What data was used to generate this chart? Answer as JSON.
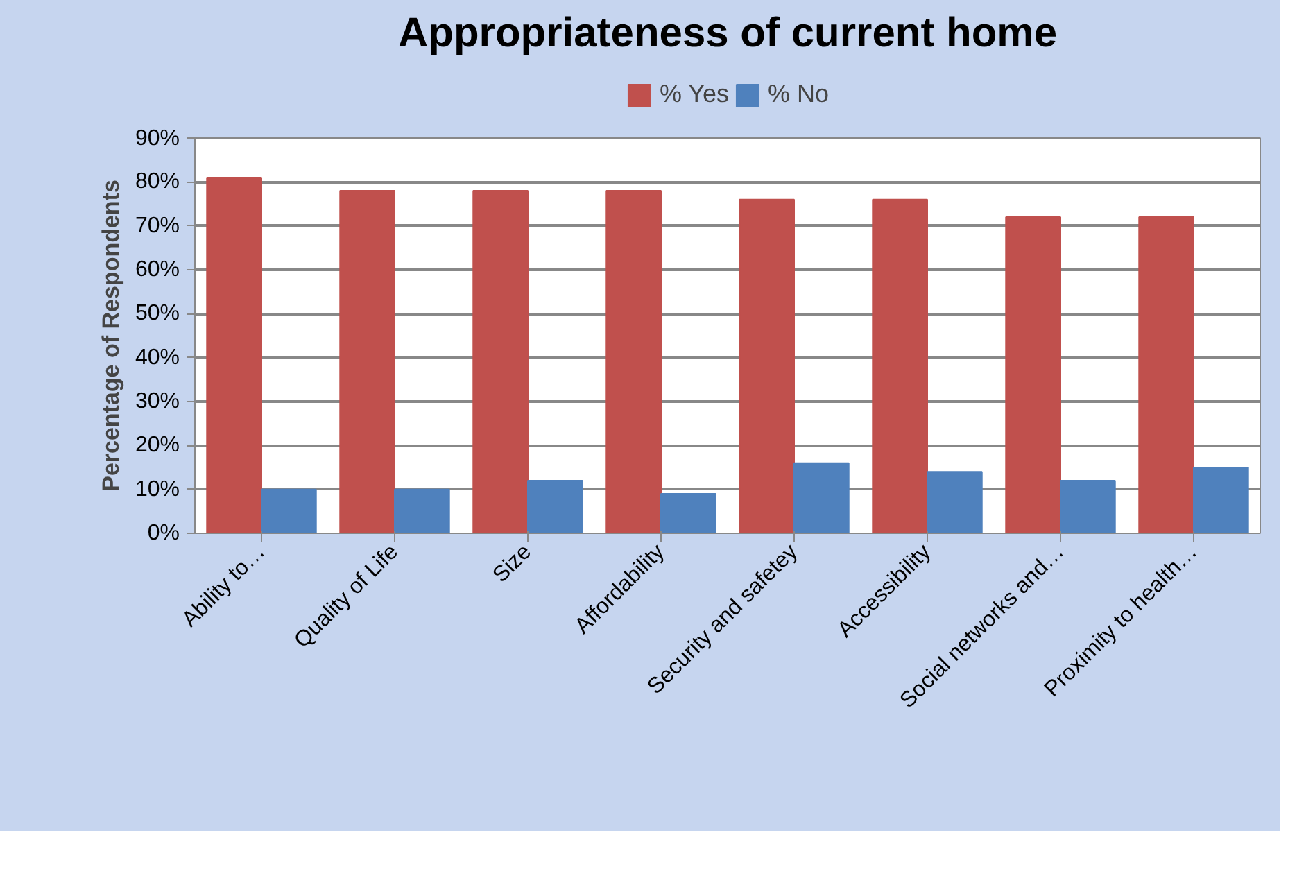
{
  "chart_data": {
    "type": "bar",
    "title": "Appropriateness of current home",
    "ylabel": "Percentage of Respondents",
    "categories": [
      "Ability to…",
      "Quality of Life",
      "Size",
      "Affordability",
      "Security and safetey",
      "Accessibility",
      "Social networks and…",
      "Proximity to health…"
    ],
    "series": [
      {
        "name": "% Yes",
        "color": "#c0504d",
        "values": [
          81,
          78,
          78,
          78,
          76,
          76,
          72,
          72
        ]
      },
      {
        "name": "% No",
        "color": "#4f81bd",
        "values": [
          10,
          10,
          12,
          9,
          16,
          14,
          12,
          15
        ]
      }
    ],
    "ylim": [
      0,
      90
    ],
    "yticks": [
      {
        "value": 0,
        "label": "0%"
      },
      {
        "value": 10,
        "label": "10%"
      },
      {
        "value": 20,
        "label": "20%"
      },
      {
        "value": 30,
        "label": "30%"
      },
      {
        "value": 40,
        "label": "40%"
      },
      {
        "value": 50,
        "label": "50%"
      },
      {
        "value": 60,
        "label": "60%"
      },
      {
        "value": 70,
        "label": "70%"
      },
      {
        "value": 80,
        "label": "80%"
      },
      {
        "value": 90,
        "label": "90%"
      }
    ],
    "grid": "y",
    "legend": "top"
  }
}
